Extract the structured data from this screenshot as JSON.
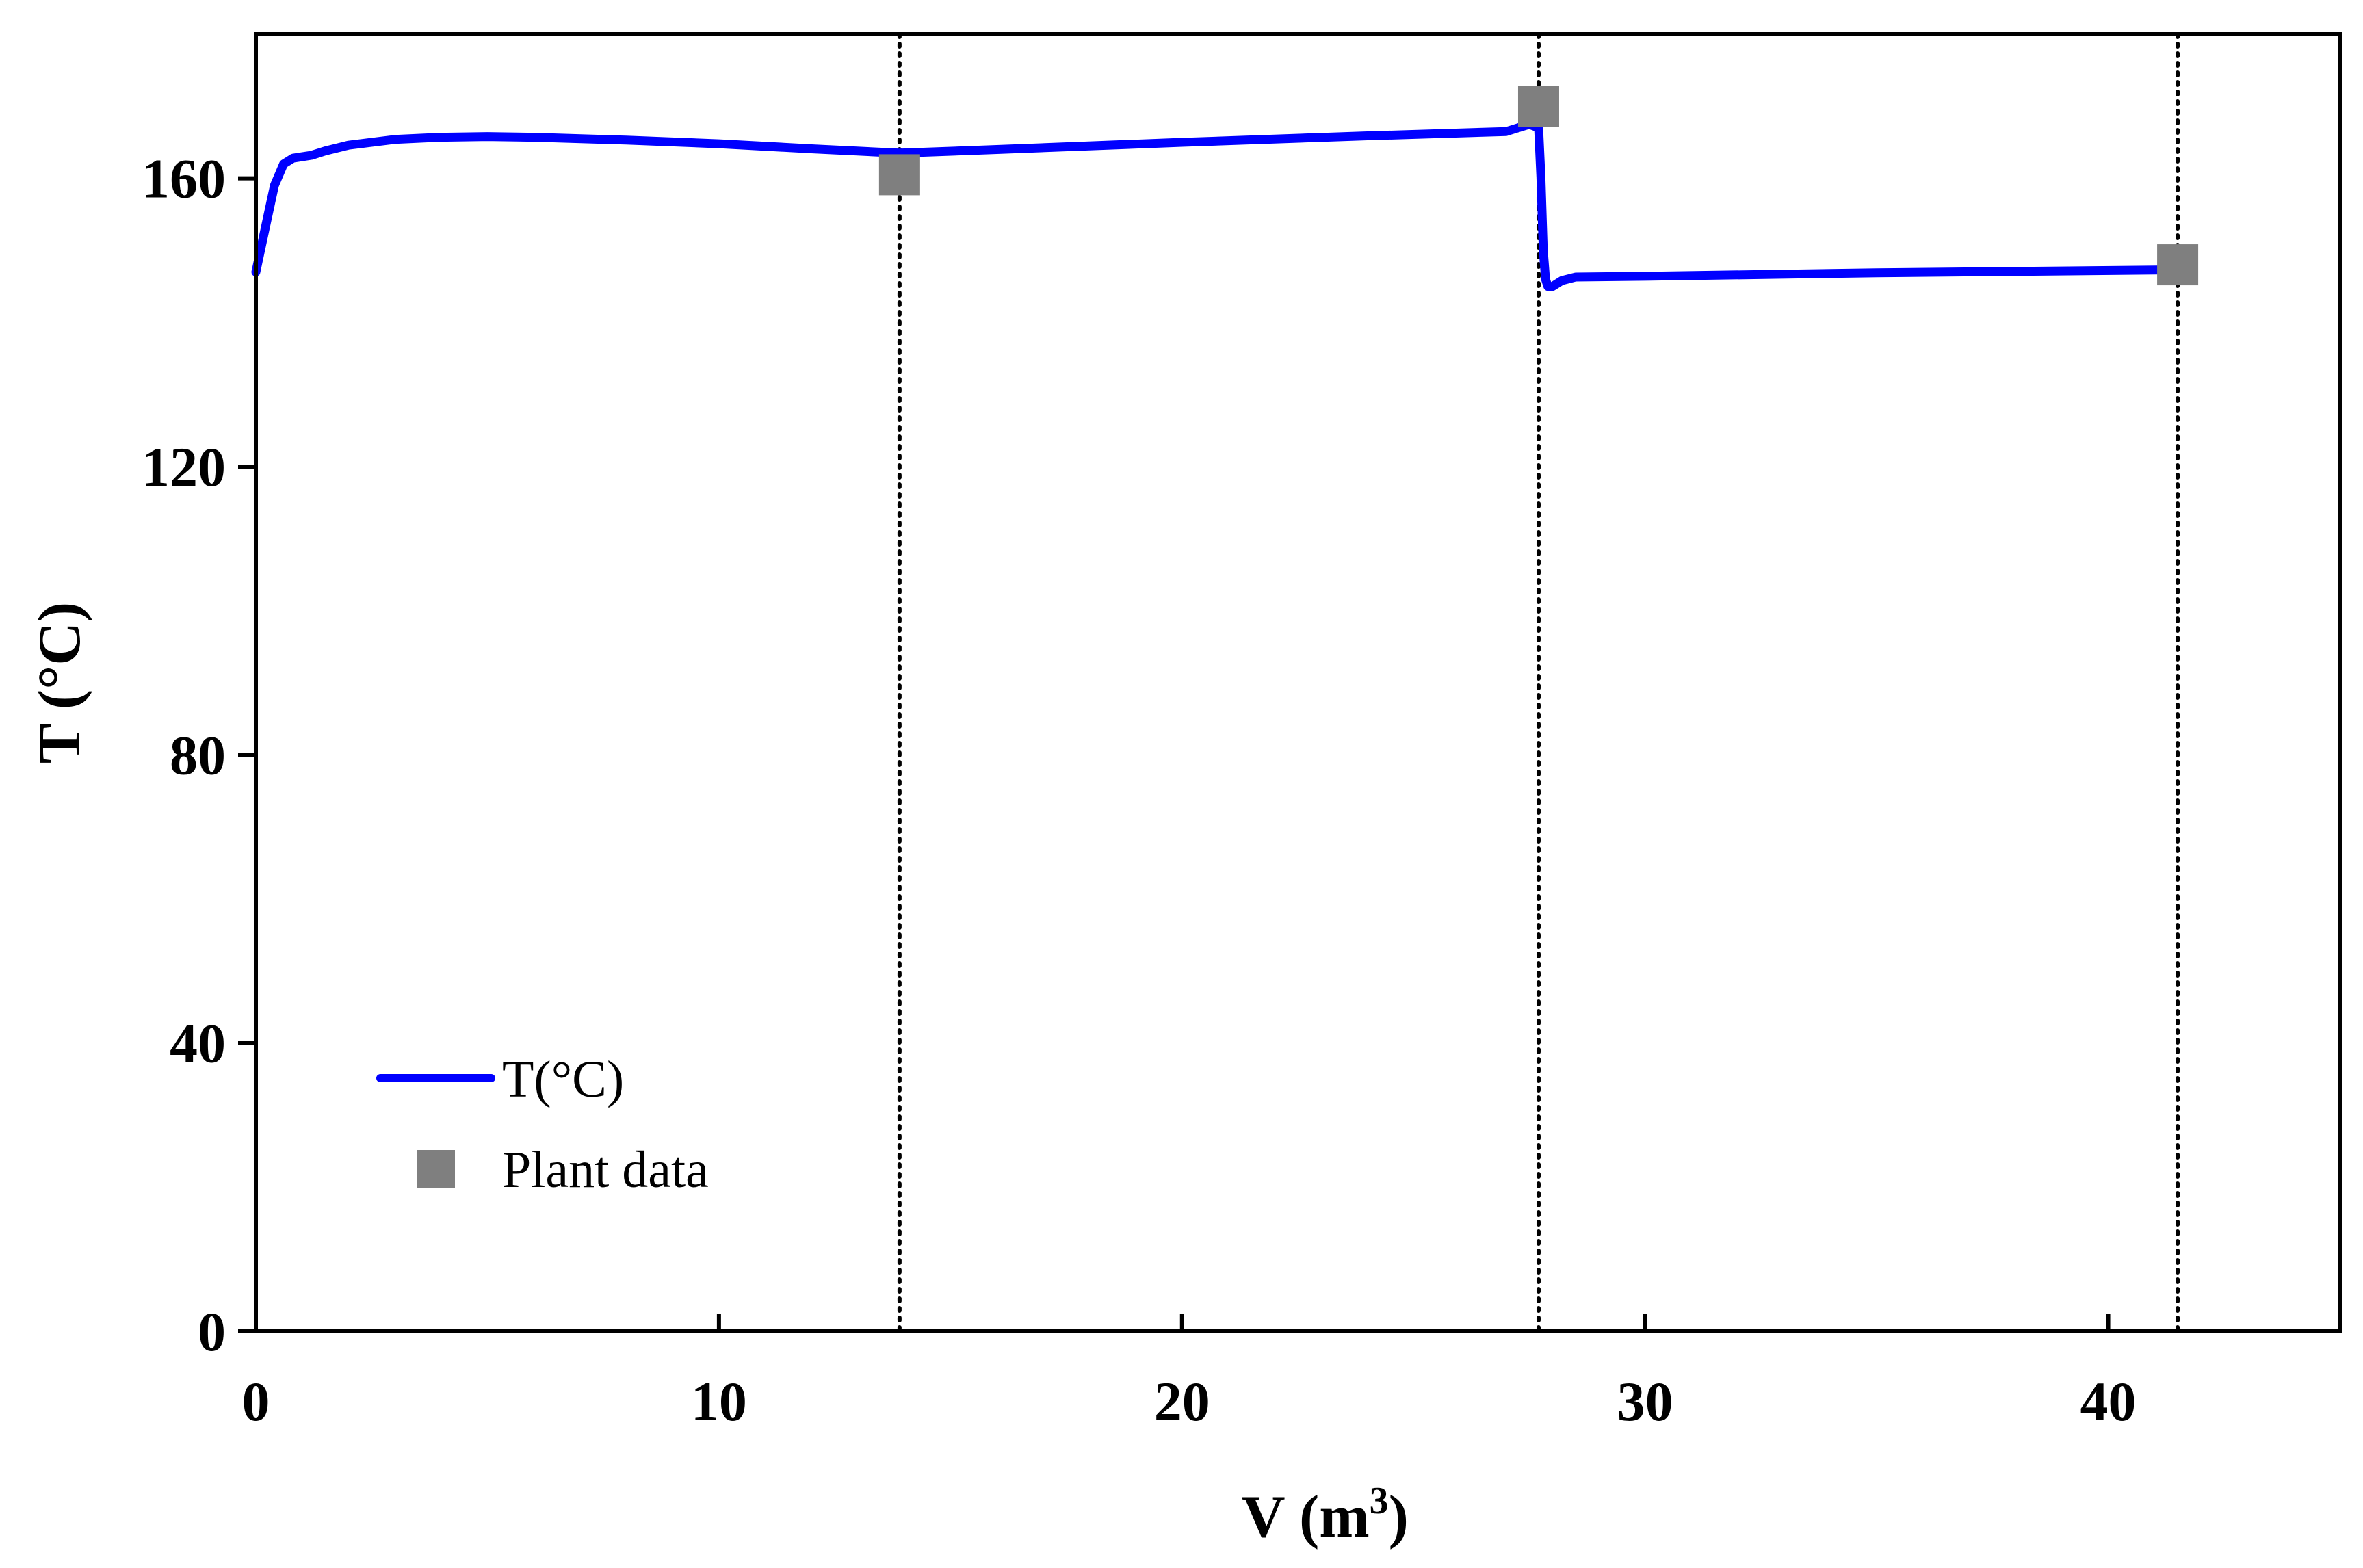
{
  "chart_data": {
    "type": "line",
    "xlabel": "V (m",
    "xlabel_superscript": "3",
    "xlabel_close": ")",
    "ylabel": "T (°C)",
    "xlim": [
      0,
      45
    ],
    "ylim": [
      0,
      180
    ],
    "x_ticks": [
      0,
      10,
      20,
      30,
      40
    ],
    "y_ticks": [
      0,
      40,
      80,
      120,
      160
    ],
    "grid": false,
    "vertical_reference_lines": [
      13.9,
      27.7,
      41.5
    ],
    "legend_position": "bottom-left",
    "series": [
      {
        "name": "T(°C)",
        "kind": "line",
        "color": "#0000ff",
        "x": [
          0.0,
          0.2,
          0.4,
          0.6,
          0.8,
          1.0,
          1.2,
          1.5,
          2.0,
          3.0,
          4.0,
          5.0,
          6.0,
          8.0,
          10.0,
          12.0,
          13.9,
          16.0,
          20.0,
          24.0,
          27.0,
          27.5,
          27.7,
          27.75,
          27.8,
          27.85,
          27.9,
          28.0,
          28.2,
          28.5,
          30.0,
          35.0,
          41.5
        ],
        "y": [
          147,
          153,
          159,
          162,
          162.8,
          163,
          163.2,
          163.8,
          164.6,
          165.4,
          165.7,
          165.8,
          165.7,
          165.3,
          164.8,
          164.1,
          163.5,
          164.0,
          165.0,
          165.9,
          166.5,
          167.5,
          167,
          160,
          150,
          146,
          145,
          145,
          145.8,
          146.3,
          146.4,
          146.9,
          147.3
        ]
      },
      {
        "name": "Plant data",
        "kind": "scatter",
        "color": "#7f7f7f",
        "marker": "square",
        "x": [
          13.9,
          27.7,
          41.5
        ],
        "y": [
          160.5,
          170,
          148
        ]
      }
    ]
  }
}
